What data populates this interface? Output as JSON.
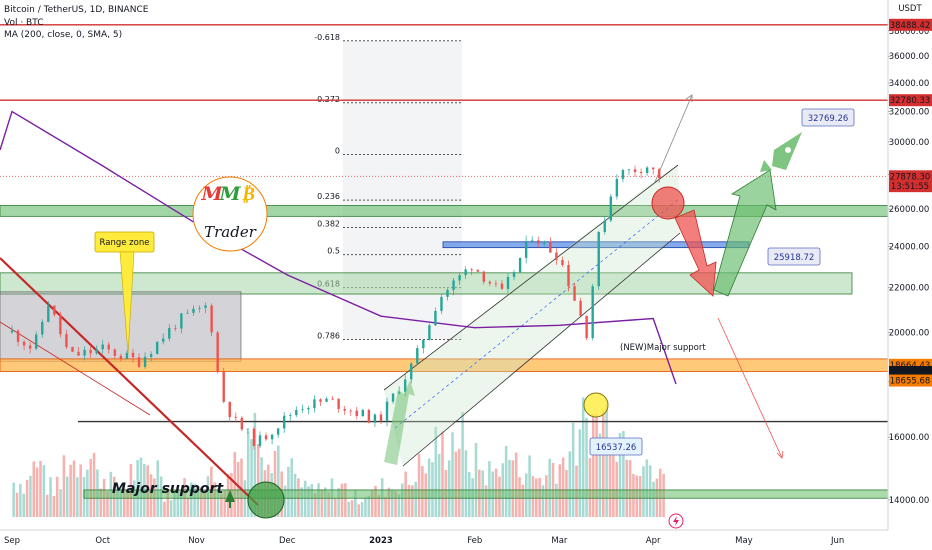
{
  "legend": {
    "title": "Bitcoin / TetherUS, 1D, BINANCE",
    "vol": "Vol · BTC",
    "ma": "MA (200, close, 0, SMA, 5)"
  },
  "currency_label": "USDT",
  "time_icon": "lightning-icon",
  "brand": {
    "mmb_letters": [
      "M",
      "M",
      "₿"
    ],
    "trader": "Trader",
    "colors": [
      "#e53935",
      "#2e9e3a",
      "#f4b400"
    ]
  },
  "colors": {
    "up_candle": "#26a69a",
    "down_candle": "#ef5350",
    "ma_line": "#7b1fa2",
    "resistance": "#d32f2f",
    "support_band": "#4caf50",
    "orange_band": "#f57c00",
    "blue_band": "#2962ff"
  },
  "chart_data": {
    "type": "candlestick",
    "title": "Bitcoin / TetherUS, 1D, BINANCE",
    "x_range": [
      "2022-09-01",
      "2023-06-15"
    ],
    "ylim": [
      13500,
      38800
    ],
    "y_scale": "log",
    "y_ticks": [
      14000,
      16000,
      18000,
      20000,
      22000,
      24000,
      26000,
      28000,
      30000,
      32000,
      34000,
      36000,
      38000
    ],
    "x_tick_labels": [
      "Sep",
      "Oct",
      "Nov",
      "Dec",
      "2023",
      "Feb",
      "Mar",
      "Apr",
      "May",
      "Jun"
    ],
    "x_tick_dates": [
      "2022-09-01",
      "2022-10-01",
      "2022-11-01",
      "2022-12-01",
      "2023-01-01",
      "2023-02-01",
      "2023-03-01",
      "2023-04-01",
      "2023-05-01",
      "2023-06-01"
    ],
    "grid": false,
    "price_points": [
      {
        "date": "2022-09-01",
        "close": 20000
      },
      {
        "date": "2022-09-08",
        "close": 19300
      },
      {
        "date": "2022-09-13",
        "close": 21300
      },
      {
        "date": "2022-09-20",
        "close": 19000
      },
      {
        "date": "2022-10-01",
        "close": 19300
      },
      {
        "date": "2022-10-13",
        "close": 18800
      },
      {
        "date": "2022-10-26",
        "close": 20500
      },
      {
        "date": "2022-11-05",
        "close": 21200
      },
      {
        "date": "2022-11-09",
        "close": 17500
      },
      {
        "date": "2022-11-14",
        "close": 16500
      },
      {
        "date": "2022-11-21",
        "close": 15800
      },
      {
        "date": "2022-12-05",
        "close": 17100
      },
      {
        "date": "2022-12-15",
        "close": 17300
      },
      {
        "date": "2022-12-31",
        "close": 16550
      },
      {
        "date": "2023-01-12",
        "close": 18800
      },
      {
        "date": "2023-01-20",
        "close": 21500
      },
      {
        "date": "2023-01-31",
        "close": 23100
      },
      {
        "date": "2023-02-10",
        "close": 21700
      },
      {
        "date": "2023-02-20",
        "close": 24600
      },
      {
        "date": "2023-03-01",
        "close": 23500
      },
      {
        "date": "2023-03-10",
        "close": 20000
      },
      {
        "date": "2023-03-14",
        "close": 24500
      },
      {
        "date": "2023-03-20",
        "close": 28000
      },
      {
        "date": "2023-03-30",
        "close": 28500
      },
      {
        "date": "2023-04-03",
        "close": 27878.3
      }
    ],
    "moving_average": {
      "name": "MA (200, close, 0, SMA, 5)",
      "points": [
        {
          "date": "2022-09-01",
          "value": 32000
        },
        {
          "date": "2022-10-01",
          "value": 28500
        },
        {
          "date": "2022-11-01",
          "value": 25200
        },
        {
          "date": "2022-12-01",
          "value": 22600
        },
        {
          "date": "2023-01-01",
          "value": 20700
        },
        {
          "date": "2023-02-01",
          "value": 20200
        },
        {
          "date": "2023-03-01",
          "value": 20300
        },
        {
          "date": "2023-04-01",
          "value": 20600
        }
      ]
    },
    "volume": {
      "axis_hidden": true,
      "relative_heights": [
        0.35,
        0.5,
        0.3,
        0.55,
        0.6,
        0.4,
        0.3,
        0.45,
        0.5,
        0.25,
        0.3,
        0.4,
        0.35,
        0.6,
        0.9,
        0.7,
        0.45,
        0.3,
        0.25,
        0.3,
        0.2,
        0.25,
        0.3,
        0.35,
        0.5,
        0.7,
        0.8,
        0.55,
        0.45,
        0.6,
        0.5,
        0.4,
        0.55,
        0.7,
        0.95,
        1.0,
        0.85,
        0.6,
        0.4
      ]
    },
    "horizontal_levels": [
      {
        "name": "upper resistance",
        "price": 38488.42
      },
      {
        "name": "resistance",
        "price": 32780.33
      },
      {
        "name": "support high",
        "price": 18664.43
      },
      {
        "name": "support low",
        "price": 18655.68
      }
    ],
    "zones": [
      {
        "name": "green zone 26k",
        "low": 25600,
        "high": 26200
      },
      {
        "name": "blue zone",
        "low": 23950,
        "high": 24250
      },
      {
        "name": "new major support zone",
        "low": 21700,
        "high": 22700,
        "label": "(NEW)Major support"
      },
      {
        "name": "range zone box",
        "low": 18800,
        "high": 21800,
        "label": "Range zone"
      },
      {
        "name": "orange zone",
        "low": 18400,
        "high": 18900
      },
      {
        "name": "major support low",
        "low": 14050,
        "high": 14300,
        "label": "Major support"
      },
      {
        "name": "dark line 16.6k",
        "price": 16540
      }
    ],
    "fibonacci": [
      {
        "level": "-0.618",
        "price": 37200
      },
      {
        "level": "-0.272",
        "price": 32600
      },
      {
        "level": "0",
        "price": 29200
      },
      {
        "level": "0.236",
        "price": 26500
      },
      {
        "level": "0.382",
        "price": 25000
      },
      {
        "level": "0.5",
        "price": 23600
      },
      {
        "level": "0.618",
        "price": 22000
      },
      {
        "level": "0.786",
        "price": 19700
      }
    ],
    "price_tags": [
      {
        "label": "38488.42",
        "price": 38488.42,
        "style": "red"
      },
      {
        "label": "32780.33",
        "price": 32780.33,
        "style": "red"
      },
      {
        "label": "27878.30",
        "price": 27878.3,
        "style": "red"
      },
      {
        "label": "13:51:55",
        "price": 27300,
        "style": "red"
      },
      {
        "label": "18664.43",
        "price": 18664.43,
        "style": "orange"
      },
      {
        "label": "18656.45",
        "price": 18380,
        "style": "black"
      },
      {
        "label": "18655.68",
        "price": 18050,
        "style": "orange"
      }
    ],
    "callouts": [
      {
        "label": "32769.26",
        "date": "2023-05-20",
        "price": 32769.26
      },
      {
        "label": "25918.72",
        "date": "2023-05-09",
        "price": 25918.72
      },
      {
        "label": "16537.26",
        "date": "2023-03-09",
        "price": 16537.26
      }
    ],
    "annotations": [
      "Range zone",
      "Major support",
      "(NEW)Major support"
    ]
  }
}
